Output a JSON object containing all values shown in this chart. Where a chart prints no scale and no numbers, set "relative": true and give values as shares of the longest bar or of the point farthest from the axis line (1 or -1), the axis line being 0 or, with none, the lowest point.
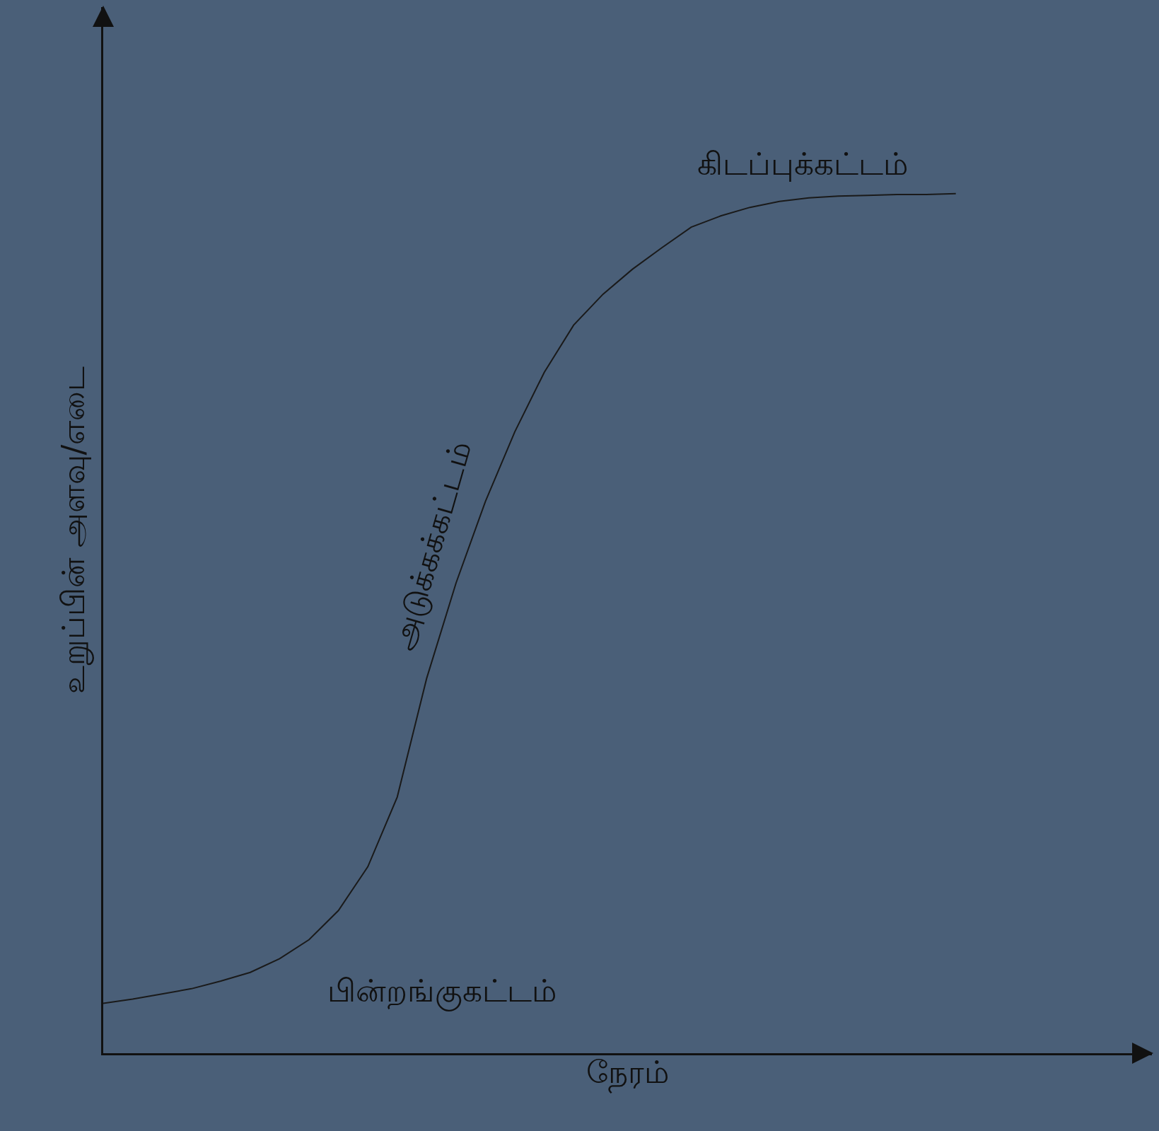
{
  "chart_data": {
    "type": "line",
    "relative": true,
    "xlabel": "நேரம்",
    "ylabel": "உறுப்பின் அளவு/எடை",
    "categories": [
      null,
      null,
      null,
      null,
      null,
      null,
      null,
      null,
      null,
      null,
      null,
      null,
      null,
      null,
      null,
      null,
      null,
      null,
      null,
      null,
      null,
      null,
      null,
      null,
      null,
      null,
      null,
      null,
      null,
      null
    ],
    "series": [
      {
        "color": "#1a1a1a",
        "values": [
          0.058,
          0.063,
          0.069,
          0.075,
          0.084,
          0.094,
          0.11,
          0.132,
          0.166,
          0.217,
          0.298,
          0.436,
          0.547,
          0.642,
          0.723,
          0.792,
          0.847,
          0.883,
          0.912,
          0.937,
          0.961,
          0.974,
          0.984,
          0.991,
          0.995,
          0.997,
          0.998,
          0.999,
          0.999,
          1
        ]
      }
    ],
    "annotations": [
      "கிடப்புக்கட்டம்",
      "அடுக்கக்கட்டம்",
      "பின்றங்குகட்டம்"
    ],
    "marker": "none",
    "line_style": "solid"
  }
}
